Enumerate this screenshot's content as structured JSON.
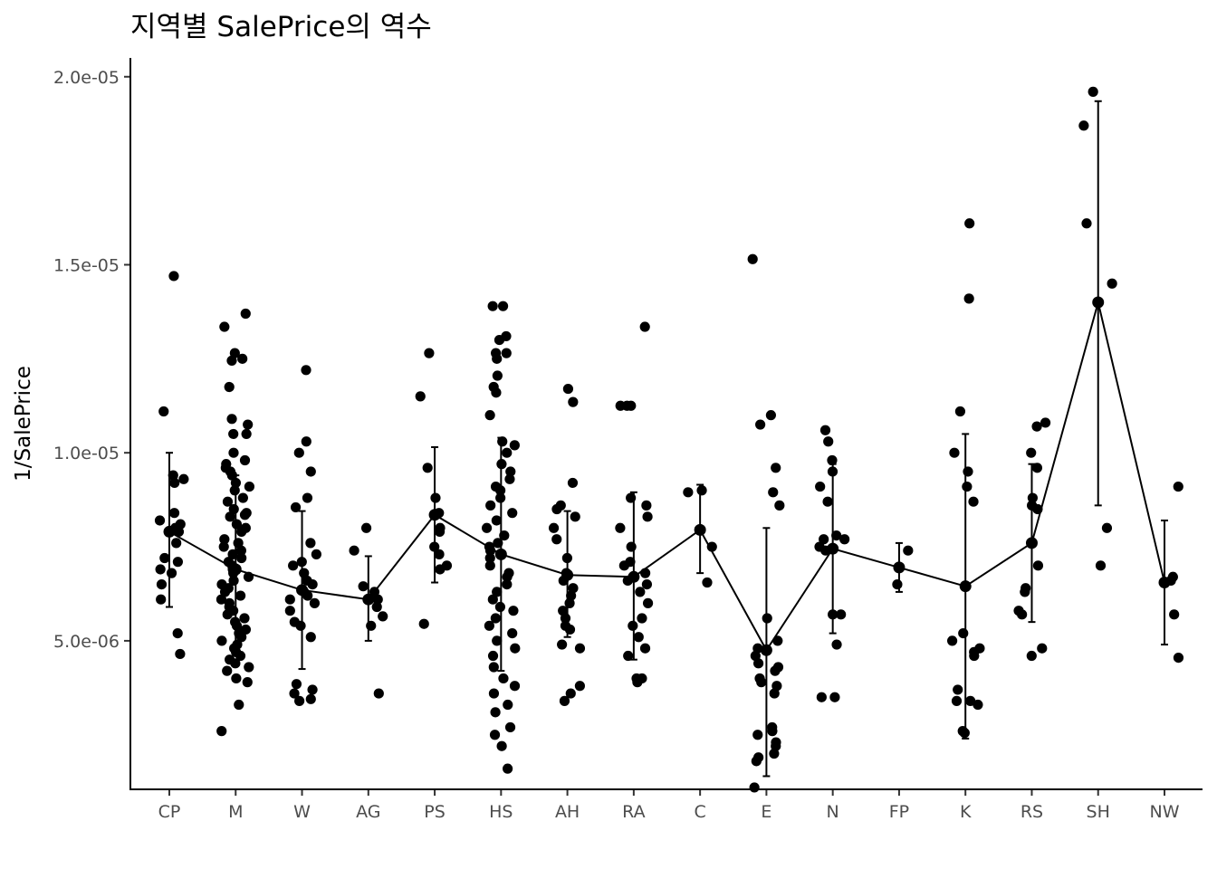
{
  "chart_data": {
    "type": "scatter",
    "title": "지역별 SalePrice의 역수",
    "xlabel": "",
    "ylabel": "1/SalePrice",
    "ylim": [
      1.05e-06,
      2.05e-05
    ],
    "y_ticks": [
      {
        "value": 5e-06,
        "label": "5.0e-06"
      },
      {
        "value": 1e-05,
        "label": "1.0e-05"
      },
      {
        "value": 1.5e-05,
        "label": "1.5e-05"
      },
      {
        "value": 2e-05,
        "label": "2.0e-05"
      }
    ],
    "grid": false,
    "categories": [
      "CP",
      "M",
      "W",
      "AG",
      "PS",
      "HS",
      "AH",
      "RA",
      "C",
      "E",
      "N",
      "FP",
      "K",
      "RS",
      "SH",
      "NW"
    ],
    "summary": {
      "mean": [
        7.9e-06,
        6.9e-06,
        6.35e-06,
        6.1e-06,
        8.35e-06,
        7.3e-06,
        6.75e-06,
        6.7e-06,
        7.95e-06,
        4.75e-06,
        7.45e-06,
        6.95e-06,
        6.45e-06,
        7.6e-06,
        1.4e-05,
        6.55e-06
      ],
      "lower": [
        5.9e-06,
        4.8e-06,
        4.25e-06,
        5e-06,
        6.55e-06,
        4.2e-06,
        5.1e-06,
        4.5e-06,
        6.8e-06,
        1.4e-06,
        5.2e-06,
        6.3e-06,
        2.4e-06,
        5.5e-06,
        8.6e-06,
        4.9e-06
      ],
      "upper": [
        1e-05,
        9.4e-06,
        8.45e-06,
        7.25e-06,
        1.015e-05,
        1.04e-05,
        8.45e-06,
        8.95e-06,
        9.15e-06,
        8e-06,
        9.7e-06,
        7.6e-06,
        1.05e-05,
        9.7e-06,
        1.935e-05,
        8.2e-06
      ]
    },
    "points": [
      [
        1.47e-05,
        1.11e-05,
        9.4e-06,
        9.3e-06,
        9.2e-06,
        8.4e-06,
        8.2e-06,
        8.1e-06,
        8e-06,
        7.9e-06,
        7.6e-06,
        7.2e-06,
        7.1e-06,
        6.9e-06,
        6.8e-06,
        6.5e-06,
        6.1e-06,
        5.2e-06,
        4.65e-06
      ],
      [
        1.37e-05,
        1.335e-05,
        1.265e-05,
        1.25e-05,
        1.245e-05,
        1.175e-05,
        1.09e-05,
        1.075e-05,
        1.05e-05,
        1.05e-05,
        1e-05,
        9.8e-06,
        9.7e-06,
        9.6e-06,
        9.5e-06,
        9.4e-06,
        9.2e-06,
        9.1e-06,
        9e-06,
        8.8e-06,
        8.7e-06,
        8.5e-06,
        8.4e-06,
        8.35e-06,
        8.3e-06,
        8.1e-06,
        8e-06,
        7.9e-06,
        7.7e-06,
        7.6e-06,
        7.5e-06,
        7.4e-06,
        7.3e-06,
        7.2e-06,
        7.1e-06,
        7e-06,
        6.9e-06,
        6.8e-06,
        6.7e-06,
        6.6e-06,
        6.5e-06,
        6.4e-06,
        6.3e-06,
        6.2e-06,
        6.1e-06,
        6e-06,
        5.9e-06,
        5.8e-06,
        5.7e-06,
        5.6e-06,
        5.5e-06,
        5.4e-06,
        5.3e-06,
        5.2e-06,
        5.1e-06,
        5e-06,
        4.9e-06,
        4.8e-06,
        4.7e-06,
        4.6e-06,
        4.5e-06,
        4.4e-06,
        4.3e-06,
        4.2e-06,
        4e-06,
        3.9e-06,
        3.3e-06,
        2.6e-06
      ],
      [
        1.22e-05,
        1.03e-05,
        1e-05,
        9.5e-06,
        8.8e-06,
        8.55e-06,
        7.6e-06,
        7.3e-06,
        7.1e-06,
        7e-06,
        6.8e-06,
        6.6e-06,
        6.5e-06,
        6.3e-06,
        6.2e-06,
        6.1e-06,
        6e-06,
        5.8e-06,
        5.5e-06,
        5.4e-06,
        5.1e-06,
        3.85e-06,
        3.7e-06,
        3.6e-06,
        3.45e-06,
        3.4e-06
      ],
      [
        8e-06,
        7.4e-06,
        6.45e-06,
        6.3e-06,
        6.1e-06,
        5.9e-06,
        5.65e-06,
        5.4e-06,
        3.6e-06
      ],
      [
        1.265e-05,
        1.15e-05,
        9.6e-06,
        8.8e-06,
        8.4e-06,
        8e-06,
        7.9e-06,
        7.5e-06,
        7.3e-06,
        7e-06,
        6.9e-06,
        5.45e-06
      ],
      [
        1.39e-05,
        1.39e-05,
        1.31e-05,
        1.3e-05,
        1.265e-05,
        1.265e-05,
        1.25e-05,
        1.205e-05,
        1.175e-05,
        1.16e-05,
        1.1e-05,
        1.03e-05,
        1.02e-05,
        1e-05,
        9.7e-06,
        9.5e-06,
        9.3e-06,
        9.1e-06,
        9e-06,
        8.8e-06,
        8.6e-06,
        8.4e-06,
        8.2e-06,
        8e-06,
        7.8e-06,
        7.6e-06,
        7.5e-06,
        7.4e-06,
        7.2e-06,
        7e-06,
        6.8e-06,
        6.7e-06,
        6.5e-06,
        6.3e-06,
        6.1e-06,
        5.9e-06,
        5.8e-06,
        5.6e-06,
        5.4e-06,
        5.2e-06,
        5e-06,
        4.8e-06,
        4.6e-06,
        4.3e-06,
        4e-06,
        3.8e-06,
        3.6e-06,
        3.3e-06,
        3.1e-06,
        2.7e-06,
        2.5e-06,
        2.2e-06,
        1.6e-06
      ],
      [
        1.17e-05,
        1.135e-05,
        9.2e-06,
        8.6e-06,
        8.5e-06,
        8.3e-06,
        8e-06,
        7.7e-06,
        7.2e-06,
        6.8e-06,
        6.6e-06,
        6.4e-06,
        6.2e-06,
        6e-06,
        5.8e-06,
        5.6e-06,
        5.4e-06,
        5.3e-06,
        4.9e-06,
        4.8e-06,
        3.8e-06,
        3.6e-06,
        3.4e-06
      ],
      [
        1.335e-05,
        1.125e-05,
        1.125e-05,
        1.125e-05,
        8.8e-06,
        8.6e-06,
        8.3e-06,
        8e-06,
        7.5e-06,
        7.1e-06,
        7e-06,
        6.8e-06,
        6.6e-06,
        6.5e-06,
        6.3e-06,
        6e-06,
        5.6e-06,
        5.4e-06,
        5.1e-06,
        4.8e-06,
        4.6e-06,
        4e-06,
        4e-06,
        3.9e-06
      ],
      [
        9e-06,
        8.95e-06,
        7.5e-06,
        6.55e-06
      ],
      [
        1.515e-05,
        1.1e-05,
        1.075e-05,
        9.6e-06,
        8.95e-06,
        8.6e-06,
        5.6e-06,
        5e-06,
        4.8e-06,
        4.6e-06,
        4.4e-06,
        4.3e-06,
        4.2e-06,
        4e-06,
        3.9e-06,
        3.8e-06,
        3.6e-06,
        2.7e-06,
        2.6e-06,
        2.5e-06,
        2.3e-06,
        2.2e-06,
        2e-06,
        1.9e-06,
        1.8e-06,
        1.1e-06
      ],
      [
        1.06e-05,
        1.03e-05,
        9.8e-06,
        9.5e-06,
        9.1e-06,
        8.7e-06,
        7.8e-06,
        7.7e-06,
        7.7e-06,
        7.5e-06,
        7.4e-06,
        5.7e-06,
        5.7e-06,
        4.9e-06,
        3.5e-06,
        3.5e-06
      ],
      [
        7.4e-06,
        6.5e-06
      ],
      [
        1.61e-05,
        1.41e-05,
        1.11e-05,
        1e-05,
        9.5e-06,
        9.1e-06,
        8.7e-06,
        5.2e-06,
        5e-06,
        4.8e-06,
        4.7e-06,
        4.6e-06,
        3.7e-06,
        3.4e-06,
        3.4e-06,
        3.3e-06,
        2.6e-06,
        2.55e-06
      ],
      [
        1.08e-05,
        1.07e-05,
        1e-05,
        9.6e-06,
        8.8e-06,
        8.6e-06,
        8.5e-06,
        7e-06,
        6.4e-06,
        6.3e-06,
        5.8e-06,
        5.7e-06,
        4.8e-06,
        4.6e-06
      ],
      [
        1.96e-05,
        1.87e-05,
        1.61e-05,
        1.45e-05,
        8e-06,
        7e-06
      ],
      [
        9.1e-06,
        6.7e-06,
        6.6e-06,
        5.7e-06,
        4.55e-06
      ]
    ]
  }
}
